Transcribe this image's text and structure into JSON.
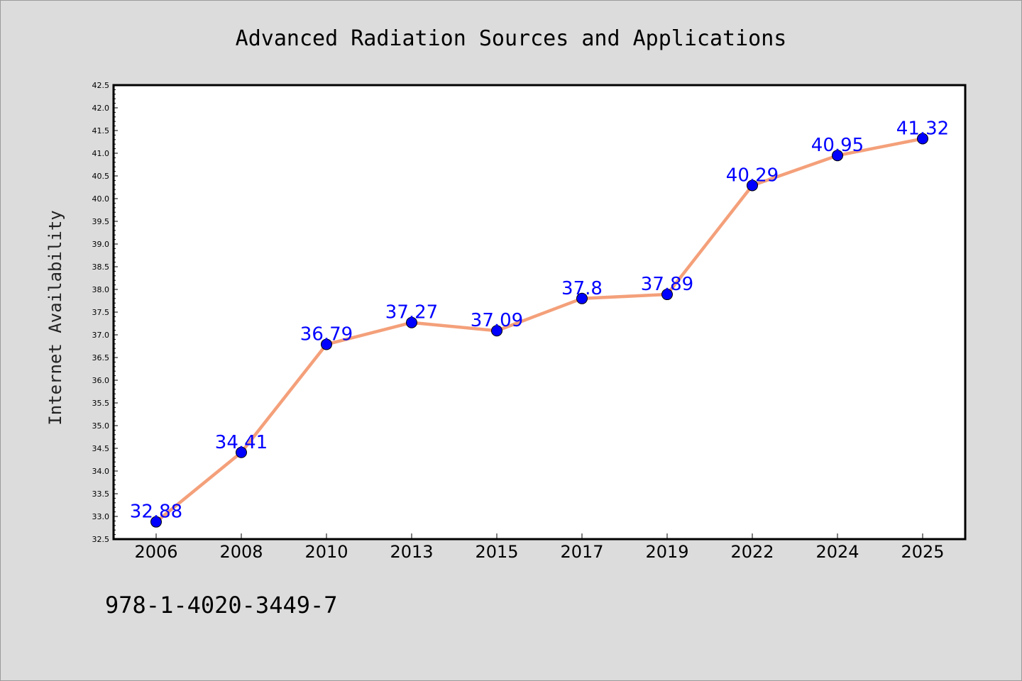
{
  "chart_data": {
    "type": "line",
    "title": "Advanced Radiation Sources and Applications",
    "xlabel": "",
    "ylabel": "Internet Availability",
    "categories": [
      "2006",
      "2008",
      "2010",
      "2013",
      "2015",
      "2017",
      "2019",
      "2022",
      "2024",
      "2025"
    ],
    "series": [
      {
        "values": [
          32.88,
          34.41,
          36.79,
          37.27,
          37.09,
          37.8,
          37.89,
          40.29,
          40.95,
          41.32
        ],
        "line_color": "#f4a07a",
        "marker_color": "#0000ff"
      }
    ],
    "data_labels": [
      "32.88",
      "34.41",
      "36.79",
      "37.27",
      "37.09",
      "37.8",
      "37.89",
      "40.29",
      "40.95",
      "41.32"
    ],
    "ylim": [
      32.5,
      42.5
    ],
    "y_ticks": [
      "32.5",
      "33.0",
      "33.5",
      "34.0",
      "34.5",
      "35.0",
      "35.5",
      "36.0",
      "36.5",
      "37.0",
      "37.5",
      "38.0",
      "38.5",
      "39.0",
      "39.5",
      "40.0",
      "40.5",
      "41.0",
      "41.5",
      "42.0",
      "42.5"
    ],
    "grid": false,
    "legend": "none"
  },
  "footnote": "978-1-4020-3449-7",
  "colors": {
    "background": "#dcdcdc",
    "plot_background": "#ffffff",
    "line": "#f4a07a",
    "marker": "#0000ff",
    "data_label": "#0000ff"
  }
}
